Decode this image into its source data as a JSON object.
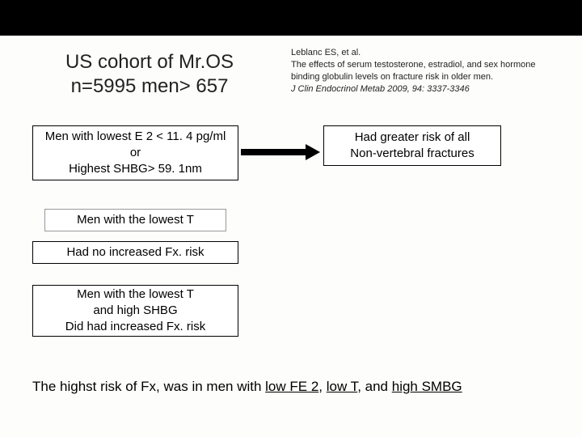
{
  "title_line1": "US cohort of Mr.OS",
  "title_line2": "n=5995 men> 657",
  "citation": {
    "authors": "Leblanc ES,  et al.",
    "text": "The effects of serum testosterone, estradiol, and sex hormone binding globulin levels on fracture risk in older men.",
    "journal": "J Clin Endocrinol Metab 2009, 94: 3337-3346"
  },
  "box_a_line1": "Men with lowest E 2 < 11. 4 pg/ml",
  "box_a_line2": "or",
  "box_a_line3": "Highest SHBG> 59. 1nm",
  "box_b_line1": "Had greater risk of all",
  "box_b_line2": "Non-vertebral fractures",
  "box_c": "Men with the lowest T",
  "box_d": "Had no increased Fx. risk",
  "box_e_line1": "Men with the lowest T",
  "box_e_line2": "and high SHBG",
  "box_e_line3": "Did had  increased Fx. risk",
  "bottom_prefix": "The highst risk of Fx, was in men with ",
  "bottom_u1": "low FE 2",
  "bottom_sep1": ",   ",
  "bottom_u2": "low T",
  "bottom_sep2": ", and ",
  "bottom_u3": "high SMBG"
}
